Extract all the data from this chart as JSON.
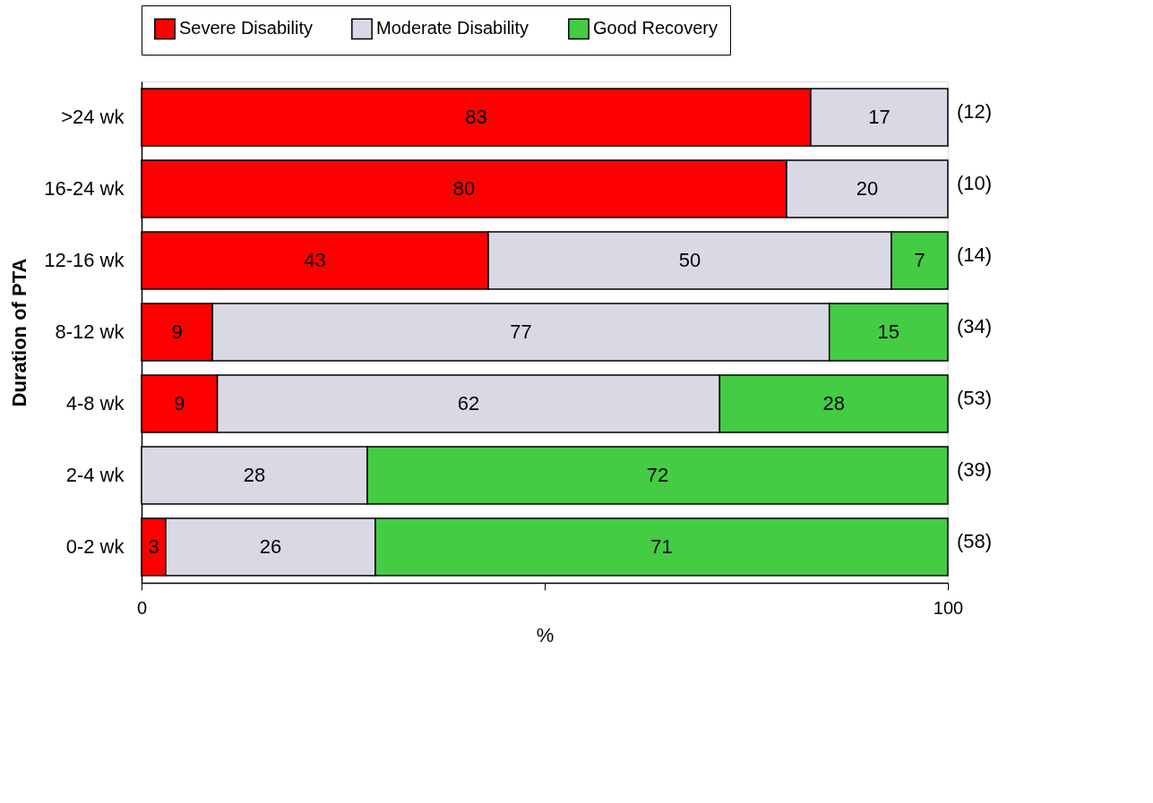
{
  "chart_data": {
    "type": "bar",
    "orientation": "horizontal",
    "stacked": true,
    "ylabel": "Duration of PTA",
    "xlabel": "%",
    "categories": [
      ">24 wk",
      "16-24 wk",
      "12-16 wk",
      "8-12 wk",
      "4-8 wk",
      "2-4 wk",
      "0-2 wk"
    ],
    "series": [
      {
        "name": "Severe Disability",
        "color": "#ff0000",
        "values": [
          83,
          80,
          43,
          8.8,
          9.4,
          null,
          3
        ],
        "value_labels": [
          "83",
          "80",
          "43",
          "9",
          "9",
          null,
          "3"
        ]
      },
      {
        "name": "Moderate Disability",
        "color": "#d9d9e6",
        "values": [
          17,
          20,
          50,
          76.5,
          62.3,
          28,
          26
        ],
        "value_labels": [
          "17",
          "20",
          "50",
          "77",
          "62",
          "28",
          "26"
        ]
      },
      {
        "name": "Good Recovery",
        "color": "#44cc44",
        "values": [
          null,
          null,
          7,
          14.7,
          28.3,
          72,
          71
        ],
        "value_labels": [
          null,
          null,
          "7",
          "15",
          "28",
          "72",
          "71"
        ]
      }
    ],
    "xlim": [
      0,
      100
    ],
    "xticks": [
      0,
      {
        "value": 50,
        "label": null
      },
      100
    ],
    "grid": false,
    "legend": "top",
    "annotations": [
      "(12)",
      "(10)",
      "(14)",
      "(34)",
      "(53)",
      "(39)",
      "(58)"
    ]
  }
}
